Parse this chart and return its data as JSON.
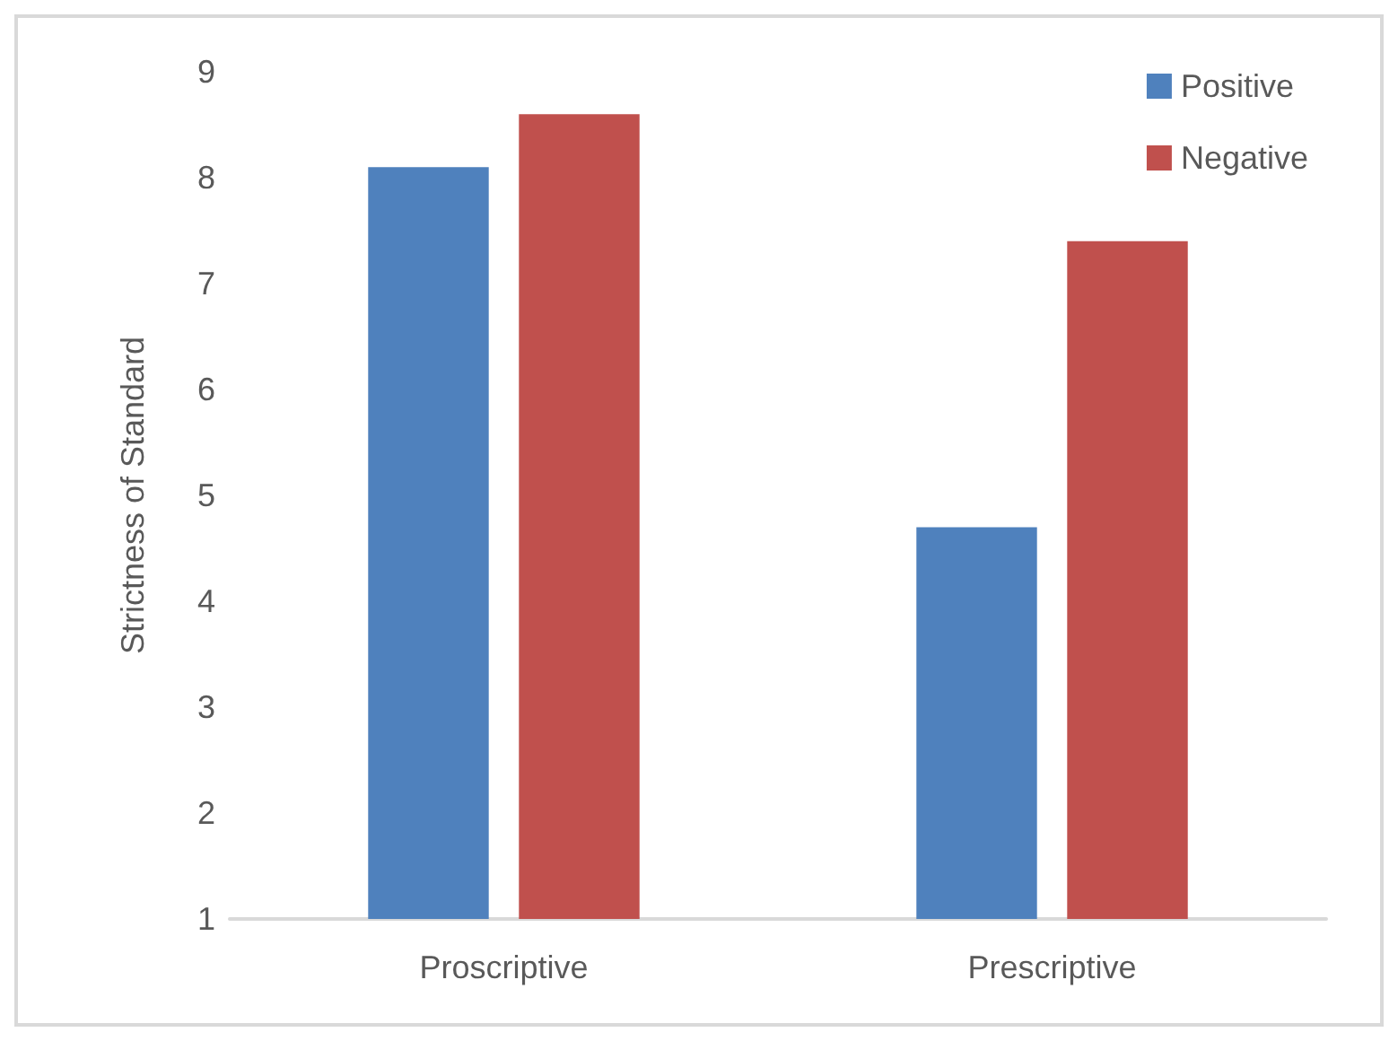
{
  "chart_data": {
    "type": "bar",
    "ylabel": "Strictness of Standard",
    "categories": [
      "Proscriptive",
      "Prescriptive"
    ],
    "series": [
      {
        "name": "Positive",
        "color": "#4f81bd",
        "values": [
          8.1,
          4.7
        ]
      },
      {
        "name": "Negative",
        "color": "#c0504d",
        "values": [
          8.6,
          7.4
        ]
      }
    ],
    "ylim": [
      1,
      9
    ],
    "yticks": [
      1,
      2,
      3,
      4,
      5,
      6,
      7,
      8,
      9
    ],
    "grid": false,
    "legend": "top right"
  }
}
